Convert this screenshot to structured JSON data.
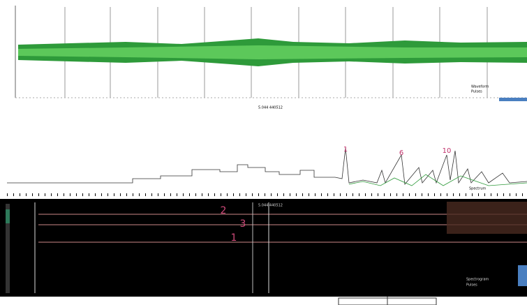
{
  "waveform": {
    "cursor_label": "5.044 440512",
    "legend": [
      "Waveform",
      "Pulses"
    ]
  },
  "spectrum": {
    "peaks": [
      "1",
      "6",
      "10"
    ],
    "legend": "Spectrum"
  },
  "spectrogram": {
    "markers": [
      "2",
      "3",
      "1"
    ],
    "cursor_label": "5.044 440512",
    "legend": [
      "Spectrogram",
      "Pulses"
    ]
  }
}
